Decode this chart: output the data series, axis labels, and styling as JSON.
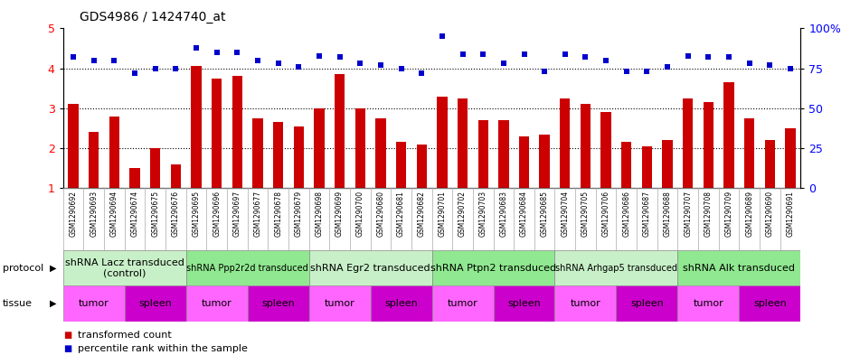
{
  "title": "GDS4986 / 1424740_at",
  "samples": [
    "GSM1290692",
    "GSM1290693",
    "GSM1290694",
    "GSM1290674",
    "GSM1290675",
    "GSM1290676",
    "GSM1290695",
    "GSM1290696",
    "GSM1290697",
    "GSM1290677",
    "GSM1290678",
    "GSM1290679",
    "GSM1290698",
    "GSM1290699",
    "GSM1290700",
    "GSM1290680",
    "GSM1290681",
    "GSM1290682",
    "GSM1290701",
    "GSM1290702",
    "GSM1290703",
    "GSM1290683",
    "GSM1290684",
    "GSM1290685",
    "GSM1290704",
    "GSM1290705",
    "GSM1290706",
    "GSM1290686",
    "GSM1290687",
    "GSM1290688",
    "GSM1290707",
    "GSM1290708",
    "GSM1290709",
    "GSM1290689",
    "GSM1290690",
    "GSM1290691"
  ],
  "bar_values": [
    3.1,
    2.4,
    2.8,
    1.5,
    2.0,
    1.6,
    4.05,
    3.75,
    3.8,
    2.75,
    2.65,
    2.55,
    3.0,
    3.85,
    3.0,
    2.75,
    2.15,
    2.1,
    3.3,
    3.25,
    2.7,
    2.7,
    2.3,
    2.35,
    3.25,
    3.1,
    2.9,
    2.15,
    2.05,
    2.2,
    3.25,
    3.15,
    3.65,
    2.75,
    2.2,
    2.5
  ],
  "dot_values_pct": [
    82,
    80,
    80,
    72,
    75,
    75,
    88,
    85,
    85,
    80,
    78,
    76,
    83,
    82,
    78,
    77,
    75,
    72,
    95,
    84,
    84,
    78,
    84,
    73,
    84,
    82,
    80,
    73,
    73,
    76,
    83,
    82,
    82,
    78,
    77,
    75
  ],
  "protocols": [
    {
      "label": "shRNA Lacz transduced\n(control)",
      "start": 0,
      "end": 6,
      "color": "#c8f0c8",
      "fontsize": 8
    },
    {
      "label": "shRNA Ppp2r2d transduced",
      "start": 6,
      "end": 12,
      "color": "#90e890",
      "fontsize": 7
    },
    {
      "label": "shRNA Egr2 transduced",
      "start": 12,
      "end": 18,
      "color": "#c8f0c8",
      "fontsize": 8
    },
    {
      "label": "shRNA Ptpn2 transduced",
      "start": 18,
      "end": 24,
      "color": "#90e890",
      "fontsize": 8
    },
    {
      "label": "shRNA Arhgap5 transduced",
      "start": 24,
      "end": 30,
      "color": "#c8f0c8",
      "fontsize": 7
    },
    {
      "label": "shRNA Alk transduced",
      "start": 30,
      "end": 36,
      "color": "#90e890",
      "fontsize": 8
    }
  ],
  "tissues": [
    {
      "label": "tumor",
      "start": 0,
      "end": 3
    },
    {
      "label": "spleen",
      "start": 3,
      "end": 6
    },
    {
      "label": "tumor",
      "start": 6,
      "end": 9
    },
    {
      "label": "spleen",
      "start": 9,
      "end": 12
    },
    {
      "label": "tumor",
      "start": 12,
      "end": 15
    },
    {
      "label": "spleen",
      "start": 15,
      "end": 18
    },
    {
      "label": "tumor",
      "start": 18,
      "end": 21
    },
    {
      "label": "spleen",
      "start": 21,
      "end": 24
    },
    {
      "label": "tumor",
      "start": 24,
      "end": 27
    },
    {
      "label": "spleen",
      "start": 27,
      "end": 30
    },
    {
      "label": "tumor",
      "start": 30,
      "end": 33
    },
    {
      "label": "spleen",
      "start": 33,
      "end": 36
    }
  ],
  "tumor_color": "#ff66ff",
  "spleen_color": "#cc00cc",
  "bar_color": "#cc0000",
  "dot_color": "#0000cc",
  "ylim_left": [
    1,
    5
  ],
  "ylim_right": [
    0,
    100
  ],
  "yticks_left": [
    1,
    2,
    3,
    4,
    5
  ],
  "yticks_right": [
    0,
    25,
    50,
    75,
    100
  ],
  "ytick_labels_right": [
    "0",
    "25",
    "50",
    "75",
    "100%"
  ],
  "background_color": "#ffffff"
}
